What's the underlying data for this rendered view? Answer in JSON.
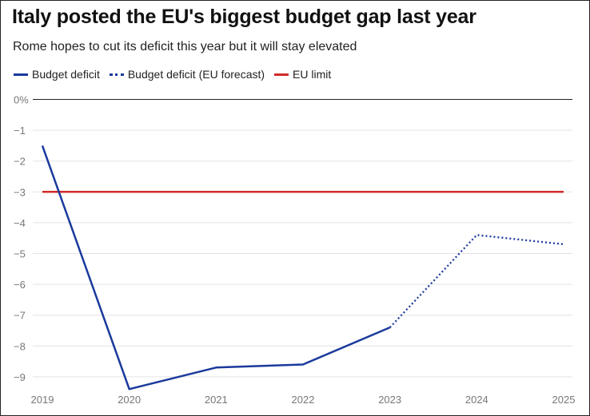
{
  "chart_data": {
    "type": "line",
    "title": "Italy posted the EU's biggest budget gap last year",
    "subtitle": "Rome hopes to cut its deficit this year but it will stay elevated",
    "x": [
      "2019",
      "2020",
      "2021",
      "2022",
      "2023",
      "2024",
      "2025"
    ],
    "ylim": [
      -9.4,
      0
    ],
    "y_ticks": [
      {
        "value": 0,
        "label": "0%"
      },
      {
        "value": -1,
        "label": "−1"
      },
      {
        "value": -2,
        "label": "−2"
      },
      {
        "value": -3,
        "label": "−3"
      },
      {
        "value": -4,
        "label": "−4"
      },
      {
        "value": -5,
        "label": "−5"
      },
      {
        "value": -6,
        "label": "−6"
      },
      {
        "value": -7,
        "label": "−7"
      },
      {
        "value": -8,
        "label": "−8"
      },
      {
        "value": -9,
        "label": "−9"
      }
    ],
    "grid": true,
    "legend_position": "top-left",
    "series": [
      {
        "name": "Budget deficit",
        "style": "solid",
        "color": "#1a3a9c",
        "x": [
          "2019",
          "2020",
          "2021",
          "2022",
          "2023"
        ],
        "values": [
          -1.5,
          -9.4,
          -8.7,
          -8.6,
          -7.4
        ]
      },
      {
        "name": "Budget deficit (EU forecast)",
        "style": "dotted",
        "color": "#1a3a9c",
        "x": [
          "2023",
          "2024",
          "2025"
        ],
        "values": [
          -7.4,
          -4.4,
          -4.7
        ]
      },
      {
        "name": "EU limit",
        "style": "solid",
        "color": "#d42a2a",
        "x": [
          "2019",
          "2025"
        ],
        "values": [
          -3,
          -3
        ]
      }
    ]
  }
}
